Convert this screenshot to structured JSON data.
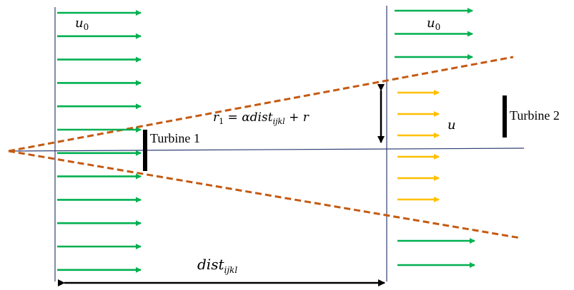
{
  "colors": {
    "free_stream_arrow": "#00b050",
    "wake_arrow": "#ffc000",
    "wake_boundary": "#c55a11",
    "plane_line": "#2f3f73",
    "ink": "#000000"
  },
  "labels": {
    "u0_left": "u",
    "u0_left_sub": "0",
    "u0_right": "u",
    "u0_right_sub": "0",
    "u_wake": "u",
    "turbine1": "Turbine 1",
    "turbine2": "Turbine 2",
    "r1_main": "r",
    "r1_sub": "1",
    "r1_mid": " = αdist",
    "r1_sub2": "ijkl",
    "r1_tail": " + r",
    "dist_main": "dist",
    "dist_sub": "ijkl"
  },
  "arrows": {
    "left_column_count": 12,
    "right_top_green_count": 3,
    "right_yellow_count": 6,
    "right_bottom_green_count": 2
  }
}
